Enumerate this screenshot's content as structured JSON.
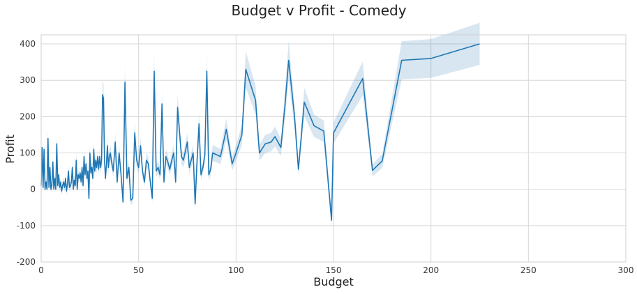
{
  "chart_data": {
    "type": "line",
    "title": "Budget v Profit - Comedy",
    "xlabel": "Budget",
    "ylabel": "Profit",
    "xlim": [
      0,
      300
    ],
    "ylim": [
      -200,
      425
    ],
    "x_ticks": [
      0,
      50,
      100,
      150,
      200,
      250,
      300
    ],
    "y_ticks": [
      -200,
      -100,
      0,
      100,
      200,
      300,
      400
    ],
    "grid": true,
    "colors": {
      "line": "#1f77b4",
      "band": "#1f77b4",
      "grid": "#d7d7d7",
      "axis_text": "#333333"
    },
    "series": [
      {
        "x": [
          0,
          0.5,
          1,
          1.5,
          2,
          2.5,
          3,
          3.5,
          4,
          4.5,
          5,
          5.5,
          6,
          6.5,
          7,
          7.5,
          8,
          8.5,
          9,
          9.5,
          10,
          10.5,
          11,
          11.5,
          12,
          12.5,
          13,
          13.5,
          14,
          14.5,
          15,
          15.5,
          16,
          16.5,
          17,
          17.5,
          18,
          18.5,
          19,
          19.5,
          20,
          20.5,
          21,
          21.5,
          22,
          22.5,
          23,
          23.5,
          24,
          24.5,
          25,
          25.5,
          26,
          26.5,
          27,
          27.5,
          28,
          28.5,
          29,
          29.5,
          30,
          30.5,
          31,
          31.5,
          32,
          32.5,
          33,
          33.5,
          34,
          34.5,
          35,
          35.5,
          36,
          37,
          38,
          39,
          40,
          41,
          42,
          43,
          44,
          45,
          46,
          47,
          48,
          49,
          50,
          51,
          52,
          53,
          54,
          55,
          56,
          57,
          58,
          59,
          60,
          61,
          62,
          63,
          64,
          65,
          66,
          67,
          68,
          69,
          70,
          72,
          73,
          75,
          76,
          78,
          79,
          80,
          81,
          82,
          83,
          84,
          85,
          86,
          87,
          88,
          90,
          92,
          95,
          98,
          100,
          103,
          105,
          110,
          112,
          115,
          118,
          120,
          123,
          125,
          127,
          130,
          132,
          135,
          140,
          145,
          149,
          150,
          165,
          170,
          175,
          185,
          200,
          225
        ],
        "y": [
          10,
          115,
          5,
          110,
          0,
          20,
          0,
          140,
          5,
          60,
          0,
          10,
          75,
          0,
          30,
          0,
          125,
          10,
          40,
          5,
          20,
          -5,
          10,
          20,
          5,
          30,
          -5,
          15,
          50,
          5,
          10,
          20,
          60,
          0,
          25,
          10,
          80,
          0,
          40,
          30,
          45,
          20,
          60,
          10,
          90,
          40,
          70,
          30,
          50,
          -25,
          100,
          45,
          60,
          30,
          110,
          50,
          80,
          60,
          90,
          55,
          90,
          60,
          80,
          260,
          250,
          80,
          30,
          70,
          120,
          60,
          90,
          100,
          80,
          50,
          130,
          20,
          100,
          40,
          -35,
          295,
          30,
          60,
          -30,
          -25,
          155,
          80,
          60,
          120,
          50,
          20,
          80,
          70,
          20,
          -25,
          325,
          50,
          60,
          40,
          235,
          20,
          90,
          75,
          55,
          80,
          100,
          20,
          225,
          90,
          80,
          130,
          60,
          100,
          -40,
          80,
          180,
          40,
          60,
          95,
          325,
          40,
          55,
          100,
          95,
          90,
          165,
          70,
          100,
          150,
          330,
          245,
          100,
          125,
          130,
          145,
          115,
          225,
          355,
          200,
          55,
          240,
          175,
          160,
          -85,
          155,
          305,
          52,
          78,
          355,
          360,
          400
        ]
      }
    ]
  }
}
